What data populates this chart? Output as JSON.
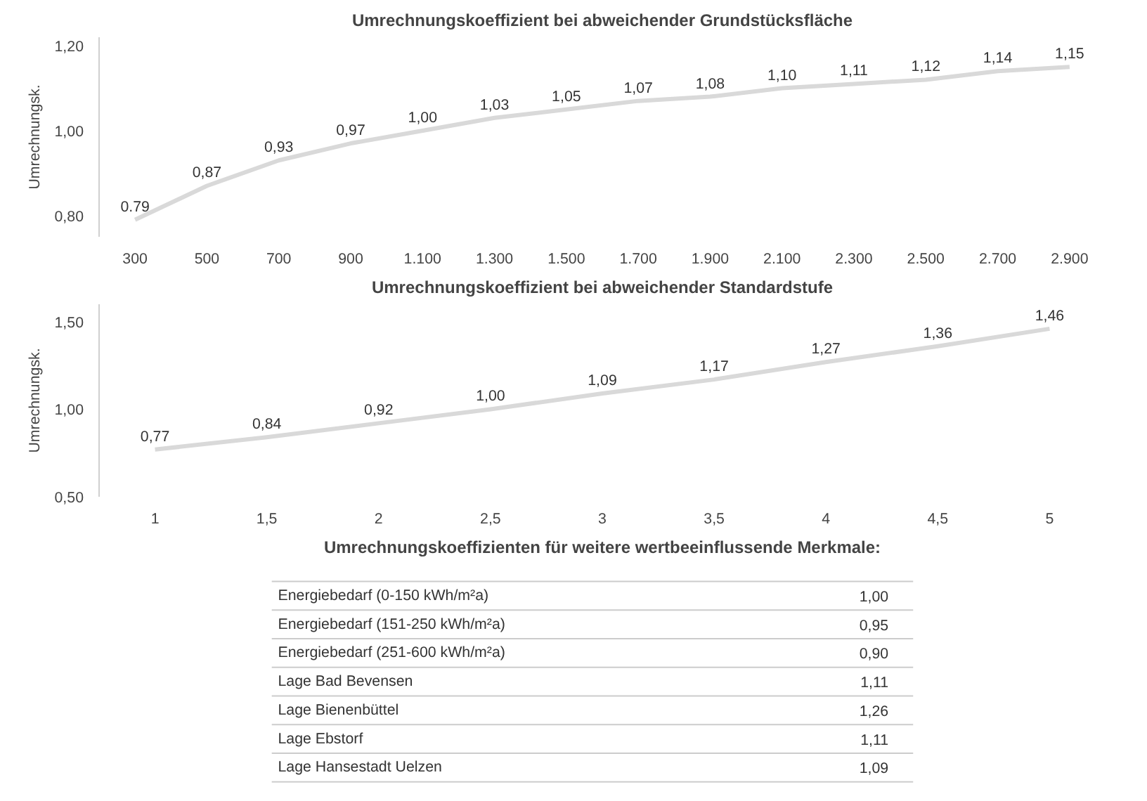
{
  "chart_data": [
    {
      "type": "line",
      "title": "Umrechnungskoeffizient bei abweichender Grundstücksfläche",
      "ylabel": "Umrechnungsk.",
      "categories": [
        "300",
        "500",
        "700",
        "900",
        "1.100",
        "1.300",
        "1.500",
        "1.700",
        "1.900",
        "2.100",
        "2.300",
        "2.500",
        "2.700",
        "2.900"
      ],
      "series": [
        {
          "color": "#d9d9d9",
          "values": [
            0.79,
            0.87,
            0.93,
            0.97,
            1.0,
            1.03,
            1.05,
            1.07,
            1.08,
            1.1,
            1.11,
            1.12,
            1.14,
            1.15
          ],
          "value_labels": [
            "0.79",
            "0,87",
            "0,93",
            "0,97",
            "1,00",
            "1,03",
            "1,05",
            "1,07",
            "1,08",
            "1,10",
            "1,11",
            "1,12",
            "1,14",
            "1,15"
          ]
        }
      ],
      "ylim": [
        0.75,
        1.22
      ],
      "yticks": [
        {
          "value": 0.8,
          "label": "0,80"
        },
        {
          "value": 1.0,
          "label": "1,00"
        },
        {
          "value": 1.2,
          "label": "1,20"
        }
      ],
      "grid": false,
      "marker": "none"
    },
    {
      "type": "line",
      "title": "Umrechnungskoeffizient bei abweichender Standardstufe",
      "ylabel": "Umrechnungsk.",
      "categories": [
        "1",
        "1,5",
        "2",
        "2,5",
        "3",
        "3,5",
        "4",
        "4,5",
        "5"
      ],
      "series": [
        {
          "color": "#d9d9d9",
          "values": [
            0.77,
            0.84,
            0.92,
            1.0,
            1.09,
            1.17,
            1.27,
            1.36,
            1.46
          ],
          "value_labels": [
            "0,77",
            "0,84",
            "0,92",
            "1,00",
            "1,09",
            "1,17",
            "1,27",
            "1,36",
            "1,46"
          ]
        }
      ],
      "ylim": [
        0.5,
        1.6
      ],
      "yticks": [
        {
          "value": 0.5,
          "label": "0,50"
        },
        {
          "value": 1.0,
          "label": "1,00"
        },
        {
          "value": 1.5,
          "label": "1,50"
        }
      ],
      "grid": false,
      "marker": "none"
    },
    {
      "type": "other",
      "title": "Umrechnungskoeffizienten für weitere wertbeeinflussende Merkmale:",
      "categories": [
        "Energiebedarf (0-150 kWh/m²a)",
        "Energiebedarf (151-250 kWh/m²a)",
        "Energiebedarf (251-600 kWh/m²a)",
        "Lage Bad Bevensen",
        "Lage Bienenbüttel",
        "Lage Ebstorf",
        "Lage Hansestadt Uelzen"
      ],
      "value_labels": [
        "1,00",
        "0,95",
        "0,90",
        "1,11",
        "1,26",
        "1,11",
        "1,09"
      ]
    }
  ]
}
